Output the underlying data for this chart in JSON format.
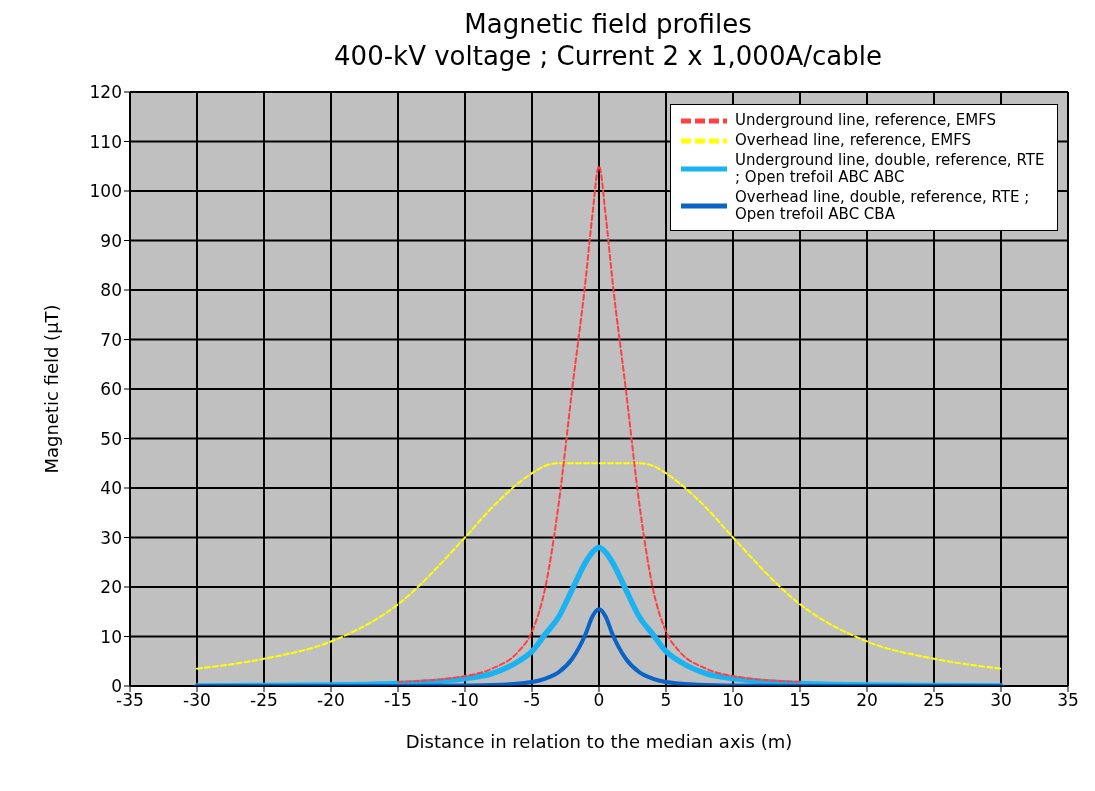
{
  "chart_data": {
    "type": "line",
    "title": "Magnetic field profiles",
    "subtitle": "400-kV voltage ; Current 2 x 1,000A/cable",
    "xlabel": "Distance in relation to the median axis (m)",
    "ylabel": "Magnetic field (µT)",
    "x": [
      -30,
      -25,
      -20,
      -15,
      -10,
      -8,
      -6,
      -5,
      -4,
      -3,
      -2,
      -1,
      -0.5,
      0,
      0.5,
      1,
      2,
      3,
      4,
      5,
      6,
      8,
      10,
      15,
      20,
      25,
      30
    ],
    "series": [
      {
        "name": "Underground line, reference, EMFS",
        "color": "#ff4040",
        "line_style": "dashed",
        "values": [
          null,
          null,
          null,
          0.8,
          2,
          3.5,
          7,
          11,
          20,
          37,
          60,
          82,
          95,
          105,
          95,
          82,
          60,
          37,
          20,
          11,
          7,
          3.5,
          2,
          0.8,
          null,
          null,
          null
        ]
      },
      {
        "name": "Overhead line, reference, EMFS",
        "color": "#ffff00",
        "line_style": "dashed",
        "values": [
          3.5,
          5.5,
          9,
          16.5,
          30,
          36,
          41,
          43,
          44.5,
          45,
          45,
          45,
          45,
          45,
          45,
          45,
          45,
          45,
          44.5,
          43,
          41,
          36,
          30,
          16.5,
          9,
          5.5,
          3.5
        ]
      },
      {
        "name": "Underground line, double, reference, RTE ; Open trefoil ABC ABC",
        "color": "#1ab2f0",
        "line_style": "solid",
        "values": [
          0,
          0.1,
          0.2,
          0.5,
          1.5,
          2.5,
          5,
          7,
          10.5,
          14,
          19.5,
          25,
          27,
          28,
          27,
          25,
          19.5,
          14,
          10.5,
          7,
          5,
          2.5,
          1.5,
          0.5,
          0.2,
          0.1,
          0
        ]
      },
      {
        "name": "Overhead line, double, reference, RTE ; Open trefoil ABC CBA",
        "color": "#0a64c8",
        "line_style": "solid",
        "values": [
          0,
          0,
          0,
          0,
          0.1,
          0.2,
          0.5,
          0.8,
          1.5,
          2.8,
          5.5,
          10.5,
          14,
          15.5,
          14,
          10.5,
          5.5,
          2.8,
          1.5,
          0.8,
          0.5,
          0.2,
          0.1,
          0,
          0,
          0,
          0
        ]
      }
    ],
    "xlim": [
      -35,
      35
    ],
    "xticks": [
      -35,
      -30,
      -25,
      -20,
      -15,
      -10,
      -5,
      0,
      5,
      10,
      15,
      20,
      25,
      30,
      35
    ],
    "ylim": [
      0,
      120
    ],
    "yticks": [
      0,
      10,
      20,
      30,
      40,
      50,
      60,
      70,
      80,
      90,
      100,
      110,
      120
    ],
    "grid": true,
    "legend": "top right",
    "marker": "none"
  }
}
